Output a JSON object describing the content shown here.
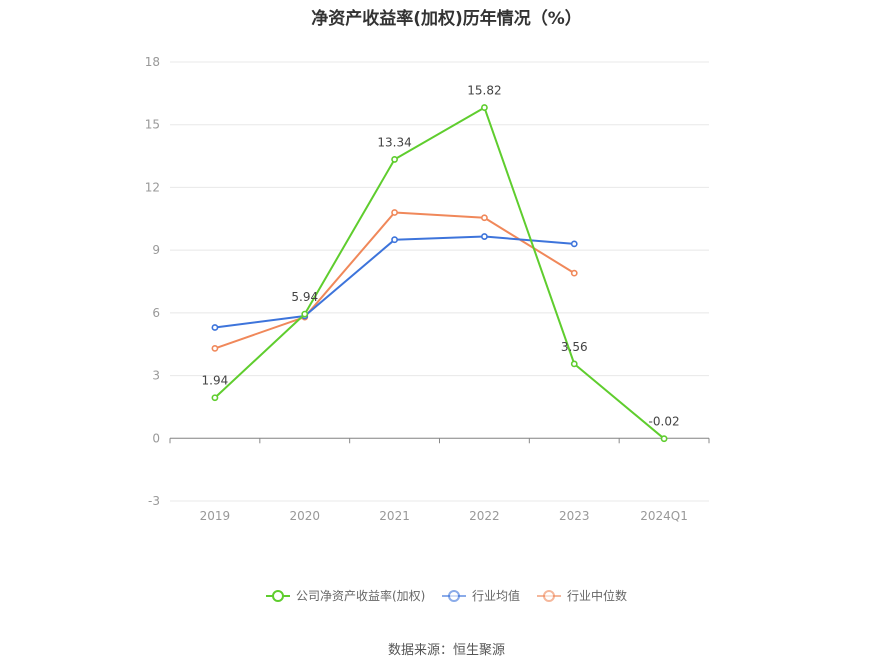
{
  "chart_data": {
    "type": "line",
    "title": "净资产收益率(加权)历年情况（%）",
    "categories": [
      "2019",
      "2020",
      "2021",
      "2022",
      "2023",
      "2024Q1"
    ],
    "y_ticks": [
      "-3",
      "0",
      "3",
      "6",
      "9",
      "12",
      "15",
      "18"
    ],
    "ylim": [
      -3,
      18
    ],
    "grid": true,
    "legend_position": "bottom",
    "series": [
      {
        "name": "公司净资产收益率(加权)",
        "color": "#5fcd2e",
        "values": [
          1.94,
          5.94,
          13.34,
          15.82,
          3.56,
          -0.02
        ],
        "labels": [
          "1.94",
          "5.94",
          "13.34",
          "15.82",
          "3.56",
          "-0.02"
        ]
      },
      {
        "name": "行业均值",
        "color": "#3d74db",
        "values": [
          5.3,
          5.85,
          9.5,
          9.65,
          9.3,
          null
        ]
      },
      {
        "name": "行业中位数",
        "color": "#f0885a",
        "values": [
          4.3,
          5.8,
          10.8,
          10.55,
          7.9,
          null
        ]
      }
    ]
  },
  "source": "数据来源：恒生聚源"
}
